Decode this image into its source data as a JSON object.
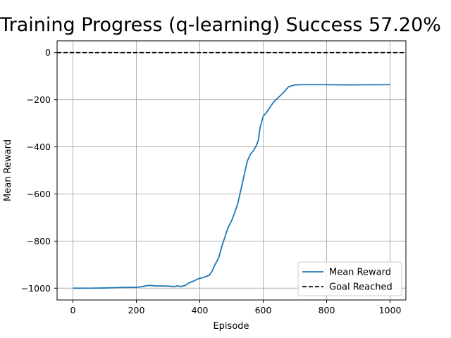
{
  "chart_data": {
    "type": "line",
    "title": "Training Progress (q-learning) Success 57.20%",
    "xlabel": "Episode",
    "ylabel": "Mean Reward",
    "xlim": [
      -50,
      1050
    ],
    "ylim": [
      -1050,
      50
    ],
    "xticks": [
      0,
      200,
      400,
      600,
      800,
      1000
    ],
    "yticks": [
      0,
      -200,
      -400,
      -600,
      -800,
      -1000
    ],
    "xtick_labels": [
      "0",
      "200",
      "400",
      "600",
      "800",
      "1000"
    ],
    "ytick_labels": [
      "0",
      "−200",
      "−400",
      "−600",
      "−800",
      "−1000"
    ],
    "grid": true,
    "legend_position": "lower-right",
    "series": [
      {
        "name": "Mean Reward",
        "color": "#1f77b4",
        "style": "solid",
        "x": [
          0,
          50,
          100,
          150,
          200,
          215,
          230,
          240,
          260,
          300,
          320,
          330,
          340,
          355,
          365,
          380,
          395,
          410,
          430,
          440,
          448,
          460,
          470,
          480,
          490,
          500,
          510,
          520,
          530,
          540,
          550,
          560,
          570,
          580,
          585,
          590,
          600,
          610,
          620,
          630,
          640,
          660,
          680,
          700,
          720,
          800,
          860,
          1000
        ],
        "y": [
          -1000,
          -1000,
          -999,
          -997,
          -996,
          -994,
          -990,
          -988,
          -990,
          -991,
          -993,
          -990,
          -993,
          -988,
          -978,
          -970,
          -960,
          -955,
          -945,
          -925,
          -900,
          -870,
          -820,
          -780,
          -740,
          -715,
          -680,
          -640,
          -580,
          -520,
          -460,
          -430,
          -415,
          -390,
          -370,
          -320,
          -270,
          -255,
          -235,
          -215,
          -200,
          -175,
          -145,
          -137,
          -136,
          -136,
          -137,
          -136
        ]
      },
      {
        "name": "Goal Reached",
        "color": "#000000",
        "style": "dashed",
        "x": [
          -50,
          1050
        ],
        "y": [
          0,
          0
        ]
      }
    ]
  }
}
